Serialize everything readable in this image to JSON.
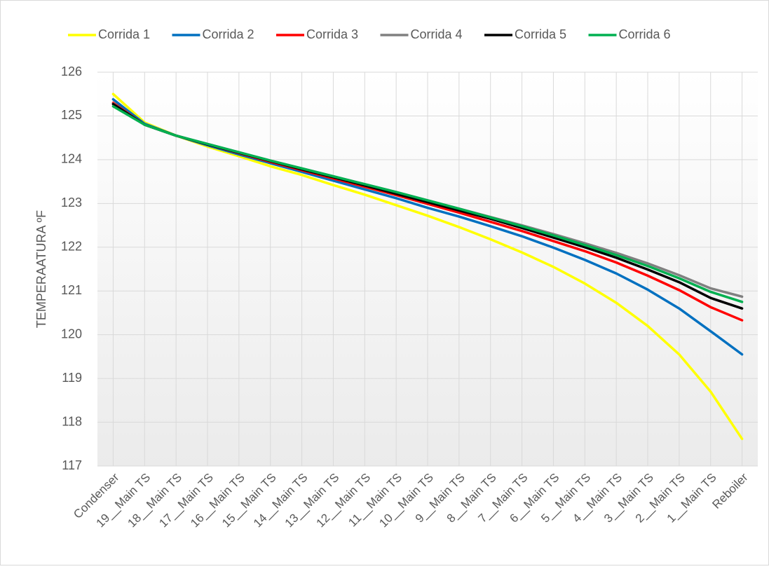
{
  "chart_data": {
    "type": "line",
    "y_label": "TEMPERAATURA ºF",
    "categories": [
      "Condenser",
      "19__Main TS",
      "18__Main TS",
      "17__Main TS",
      "16__Main TS",
      "15__Main TS",
      "14__Main TS",
      "13__Main TS",
      "12__Main TS",
      "11__Main TS",
      "10__Main TS",
      "9__Main TS",
      "8__Main TS",
      "7__Main TS",
      "6__Main TS",
      "5__Main TS",
      "4__Main TS",
      "3__Main TS",
      "2__Main TS",
      "1__Main TS",
      "Reboiler"
    ],
    "series": [
      {
        "name": "Corrida 1",
        "color": "#ffff00",
        "values": [
          125.5,
          124.85,
          124.55,
          124.3,
          124.08,
          123.85,
          123.65,
          123.42,
          123.2,
          122.96,
          122.72,
          122.46,
          122.18,
          121.88,
          121.55,
          121.17,
          120.73,
          120.2,
          119.55,
          118.7,
          117.62
        ]
      },
      {
        "name": "Corrida 2",
        "color": "#0070c0",
        "values": [
          125.38,
          124.82,
          124.55,
          124.33,
          124.12,
          123.92,
          123.72,
          123.52,
          123.32,
          123.12,
          122.9,
          122.7,
          122.48,
          122.25,
          121.99,
          121.71,
          121.4,
          121.03,
          120.6,
          120.08,
          119.55
        ]
      },
      {
        "name": "Corrida 3",
        "color": "#ff0000",
        "values": [
          125.3,
          124.8,
          124.55,
          124.35,
          124.15,
          123.95,
          123.76,
          123.57,
          123.38,
          123.19,
          122.99,
          122.79,
          122.58,
          122.37,
          122.14,
          121.91,
          121.65,
          121.35,
          121.02,
          120.63,
          120.33
        ]
      },
      {
        "name": "Corrida 4",
        "color": "#808080",
        "values": [
          125.28,
          124.8,
          124.55,
          124.36,
          124.17,
          123.98,
          123.8,
          123.62,
          123.44,
          123.26,
          123.07,
          122.88,
          122.69,
          122.5,
          122.3,
          122.09,
          121.87,
          121.63,
          121.36,
          121.06,
          120.87
        ]
      },
      {
        "name": "Corrida 5",
        "color": "#000000",
        "values": [
          125.27,
          124.8,
          124.55,
          124.35,
          124.16,
          123.97,
          123.78,
          123.6,
          123.41,
          123.22,
          123.03,
          122.84,
          122.65,
          122.44,
          122.22,
          122.0,
          121.76,
          121.49,
          121.2,
          120.84,
          120.6
        ]
      },
      {
        "name": "Corrida 6",
        "color": "#00b050",
        "values": [
          125.22,
          124.8,
          124.55,
          124.36,
          124.17,
          123.98,
          123.8,
          123.62,
          123.44,
          123.26,
          123.07,
          122.88,
          122.68,
          122.48,
          122.27,
          122.05,
          121.82,
          121.57,
          121.29,
          120.98,
          120.75
        ]
      }
    ],
    "ylim": [
      117,
      126
    ],
    "yticks": [
      117,
      118,
      119,
      120,
      121,
      122,
      123,
      124,
      125,
      126
    ],
    "grid": true,
    "legend": "top"
  }
}
